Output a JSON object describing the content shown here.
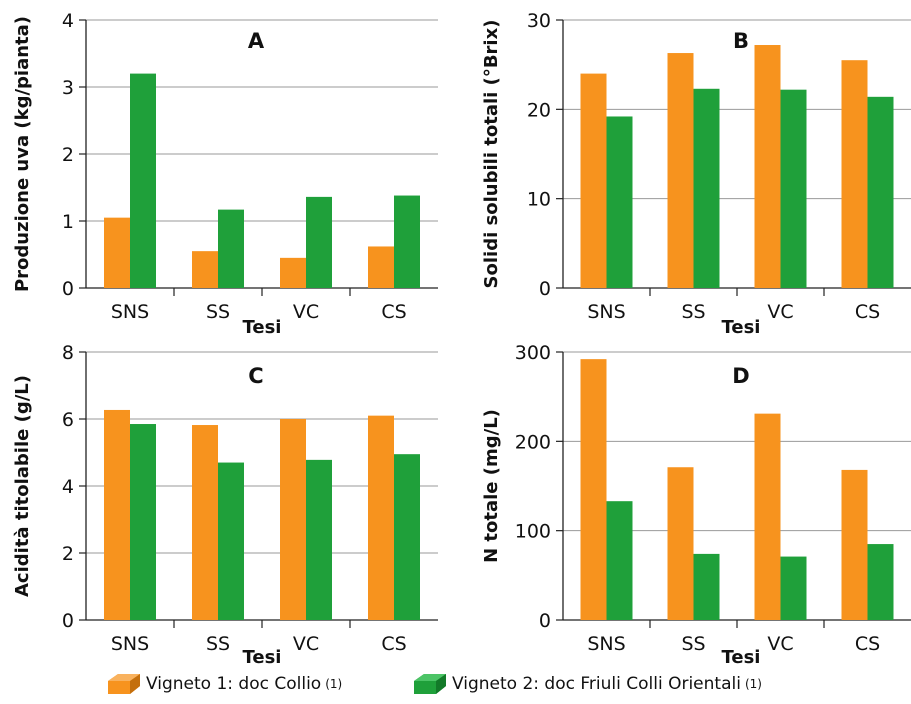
{
  "colors": {
    "series1": "#F7931E",
    "series2": "#1FA03A",
    "grid": "#9a9a9a",
    "axis": "#222222"
  },
  "legend": [
    {
      "label": "Vigneto 1: doc Collio",
      "note": "(1)"
    },
    {
      "label": "Vigneto 2: doc Friuli Colli Orientali",
      "note": "(1)"
    }
  ],
  "chart_data": [
    {
      "type": "bar",
      "title": "A",
      "categories": [
        "SNS",
        "SS",
        "VC",
        "CS"
      ],
      "series": [
        {
          "name": "Vigneto 1: doc Collio",
          "values": [
            1.05,
            0.55,
            0.45,
            0.62
          ]
        },
        {
          "name": "Vigneto 2: doc Friuli Colli Orientali",
          "values": [
            3.2,
            1.17,
            1.36,
            1.38
          ]
        }
      ],
      "xlabel": "",
      "ylabel": "Produzione uva (kg/pianta)",
      "ylim": [
        0,
        4
      ],
      "yticks": [
        0,
        1,
        2,
        3,
        4
      ],
      "grid": true
    },
    {
      "type": "bar",
      "title": "B",
      "categories": [
        "SNS",
        "SS",
        "VC",
        "CS"
      ],
      "series": [
        {
          "name": "Vigneto 1: doc Collio",
          "values": [
            24.0,
            26.3,
            27.2,
            25.5
          ]
        },
        {
          "name": "Vigneto 2: doc Friuli Colli Orientali",
          "values": [
            19.2,
            22.3,
            22.2,
            21.4
          ]
        }
      ],
      "xlabel": "Tesi",
      "ylabel": "Solidi solubili totali  (°Brix)",
      "ylim": [
        0,
        30
      ],
      "yticks": [
        0,
        10,
        20,
        30
      ],
      "grid": true
    },
    {
      "type": "bar",
      "title": "C",
      "categories": [
        "SNS",
        "SS",
        "VC",
        "CS"
      ],
      "series": [
        {
          "name": "Vigneto 1: doc Collio",
          "values": [
            6.27,
            5.82,
            6.0,
            6.1
          ]
        },
        {
          "name": "Vigneto 2: doc Friuli Colli Orientali",
          "values": [
            5.85,
            4.7,
            4.78,
            4.95
          ]
        }
      ],
      "xlabel": "Tesi",
      "ylabel": "Acidità titolabile  (g/L)",
      "ylim": [
        0,
        8
      ],
      "yticks": [
        0,
        2,
        4,
        6,
        8
      ],
      "grid": true
    },
    {
      "type": "bar",
      "title": "D",
      "categories": [
        "SNS",
        "SS",
        "VC",
        "CS"
      ],
      "series": [
        {
          "name": "Vigneto 1: doc Collio",
          "values": [
            292,
            171,
            231,
            168
          ]
        },
        {
          "name": "Vigneto 2: doc Friuli Colli Orientali",
          "values": [
            133,
            74,
            71,
            85
          ]
        }
      ],
      "xlabel": "Tesi",
      "ylabel": "N totale  (mg/L)",
      "ylim": [
        0,
        300
      ],
      "yticks": [
        0,
        100,
        200,
        300
      ],
      "grid": true
    }
  ],
  "tesi_label": "Tesi"
}
